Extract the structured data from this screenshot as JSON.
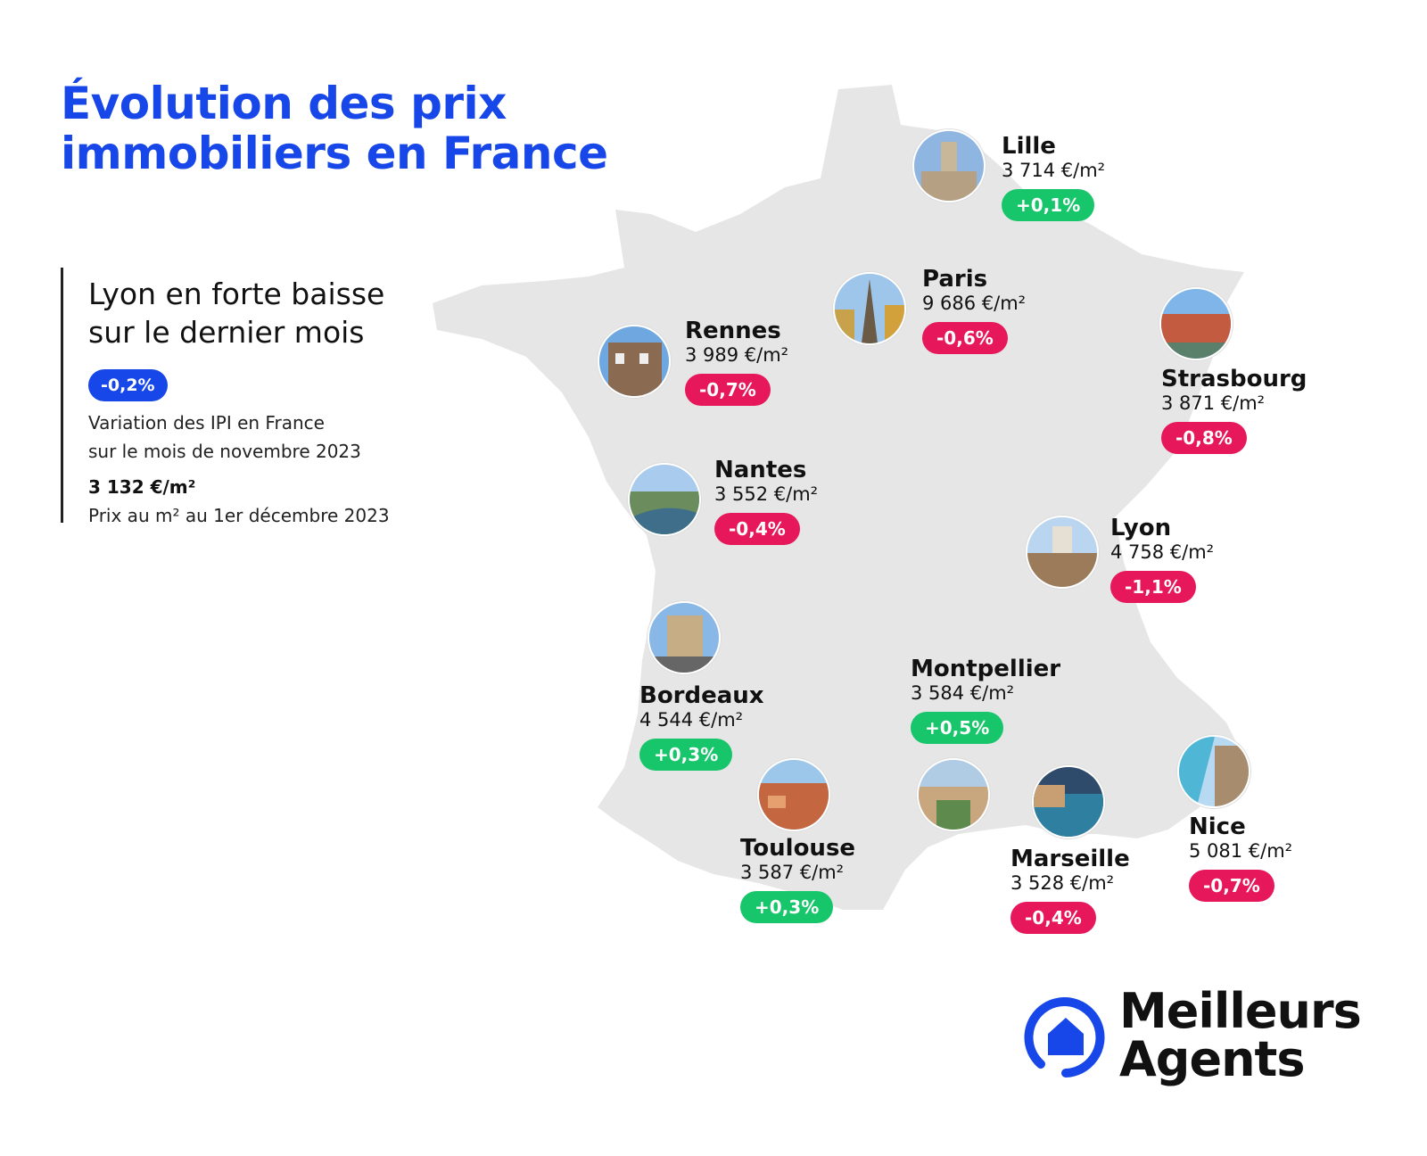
{
  "title": {
    "line1": "Évolution des prix",
    "line2": "immobiliers en France"
  },
  "summary": {
    "headline_line1": "Lyon en forte baisse",
    "headline_line2": "sur le dernier mois",
    "variation": "-0,2%",
    "variation_desc_line1": "Variation des IPI en France",
    "variation_desc_line2": "sur le mois de novembre 2023",
    "price": "3 132 €/m²",
    "price_desc": "Prix au m² au 1er décembre 2023"
  },
  "cities": {
    "lille": {
      "name": "Lille",
      "price": "3 714 €/m²",
      "change": "+0,1%"
    },
    "paris": {
      "name": "Paris",
      "price": "9 686 €/m²",
      "change": "-0,6%"
    },
    "rennes": {
      "name": "Rennes",
      "price": "3 989 €/m²",
      "change": "-0,7%"
    },
    "strasbourg": {
      "name": "Strasbourg",
      "price": "3 871 €/m²",
      "change": "-0,8%"
    },
    "nantes": {
      "name": "Nantes",
      "price": "3 552 €/m²",
      "change": "-0,4%"
    },
    "lyon": {
      "name": "Lyon",
      "price": "4 758 €/m²",
      "change": "-1,1%"
    },
    "bordeaux": {
      "name": "Bordeaux",
      "price": "4 544 €/m²",
      "change": "+0,3%"
    },
    "montpellier": {
      "name": "Montpellier",
      "price": "3 584 €/m²",
      "change": "+0,5%"
    },
    "toulouse": {
      "name": "Toulouse",
      "price": "3 587 €/m²",
      "change": "+0,3%"
    },
    "marseille": {
      "name": "Marseille",
      "price": "3 528 €/m²",
      "change": "-0,4%"
    },
    "nice": {
      "name": "Nice",
      "price": "5 081 €/m²",
      "change": "-0,7%"
    }
  },
  "logo": {
    "line1": "Meilleurs",
    "line2": "Agents"
  },
  "colors": {
    "brand_blue": "#1747e8",
    "up_green": "#17c56a",
    "down_red": "#e6185b",
    "map_fill": "#e6e6e6"
  }
}
